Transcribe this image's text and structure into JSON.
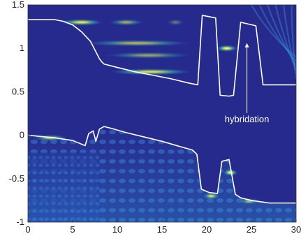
{
  "chart_data": {
    "type": "heatmap",
    "title": "",
    "xlabel": "",
    "ylabel": "",
    "xlim": [
      0,
      30
    ],
    "ylim": [
      -1,
      1.5
    ],
    "xticks": [
      0,
      5,
      10,
      15,
      20,
      25,
      30
    ],
    "xtick_labels": [
      "0",
      "5",
      "10",
      "15",
      "20",
      "25",
      "30"
    ],
    "yticks": [
      -1,
      -0.5,
      0,
      0.5,
      1,
      1.5
    ],
    "ytick_labels": [
      "-1",
      "-0.5",
      "0",
      "0.5",
      "1",
      "1.5"
    ],
    "grid": false,
    "background_color": "#262a8c",
    "line_color": "#ffffff",
    "series": [
      {
        "x": [
          0,
          3,
          4,
          5,
          6,
          7,
          7.5,
          8.0,
          8.3,
          8.5,
          10,
          12,
          14,
          16,
          18,
          19.0,
          19.5,
          21.0,
          21.5,
          22.5,
          23.0,
          23.8,
          25.5,
          26.3,
          28,
          30
        ],
        "y": [
          1.33,
          1.33,
          1.31,
          1.27,
          1.19,
          1.08,
          0.98,
          0.88,
          0.84,
          0.82,
          0.78,
          0.73,
          0.69,
          0.65,
          0.6,
          0.58,
          1.38,
          1.35,
          0.46,
          0.45,
          0.46,
          1.3,
          1.26,
          0.58,
          0.58,
          0.58
        ]
      },
      {
        "x": [
          0,
          3,
          5,
          6.4,
          6.8,
          7.3,
          7.6,
          8.0,
          8.5,
          9.3,
          11,
          13,
          15,
          17,
          18.4,
          18.9,
          19.4,
          20.3,
          21.2,
          21.7,
          22.5,
          23.2,
          23.8,
          25,
          27,
          30
        ],
        "y": [
          0,
          -0.03,
          -0.06,
          -0.12,
          0.02,
          0.05,
          -0.07,
          0.07,
          0.1,
          0.08,
          0.03,
          -0.02,
          -0.07,
          -0.13,
          -0.17,
          -0.22,
          -0.62,
          -0.66,
          -0.67,
          -0.3,
          -0.28,
          -0.68,
          -0.72,
          -0.75,
          -0.78,
          -0.78
        ]
      }
    ],
    "heat_spots": [
      {
        "x0": 3.5,
        "x1": 8.5,
        "y": 1.3,
        "intensity": 0.9
      },
      {
        "x0": 9.0,
        "x1": 13.0,
        "y": 1.3,
        "intensity": 0.6
      },
      {
        "x0": 15.5,
        "x1": 17.5,
        "y": 1.3,
        "intensity": 0.35
      },
      {
        "x0": 6.0,
        "x1": 18.5,
        "y": 1.06,
        "intensity": 0.65
      },
      {
        "x0": 8.5,
        "x1": 18.5,
        "y": 0.92,
        "intensity": 0.55
      },
      {
        "x0": 9.0,
        "x1": 18.5,
        "y": 0.73,
        "intensity": 0.85
      },
      {
        "x0": 21.0,
        "x1": 23.5,
        "y": 1.0,
        "intensity": 1.0
      },
      {
        "x0": 21.8,
        "x1": 23.5,
        "y": -0.43,
        "intensity": 1.0
      },
      {
        "x0": 19.5,
        "x1": 21.5,
        "y": -0.7,
        "intensity": 0.85
      },
      {
        "x0": 23.5,
        "x1": 26.0,
        "y": -0.76,
        "intensity": 0.55
      },
      {
        "x0": 0.5,
        "x1": 4.5,
        "y": -0.03,
        "intensity": 0.7
      }
    ],
    "annotations": [
      {
        "text": "hybridation",
        "x": 24.5,
        "y": 0.15,
        "arrow_to": [
          24.5,
          1.06
        ]
      }
    ]
  }
}
